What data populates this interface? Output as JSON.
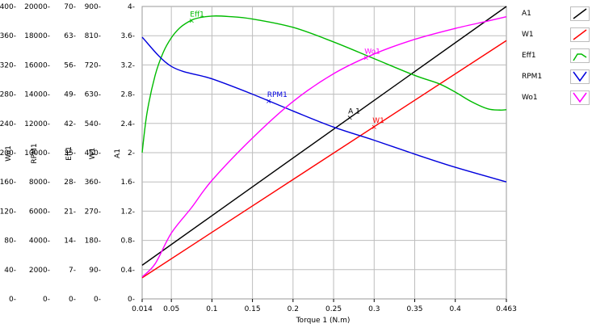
{
  "chart_data": {
    "type": "line",
    "xlabel": "Torque 1 (N.m)",
    "x_ticks": [
      "0.014",
      "0.05",
      "0.1",
      "0.15",
      "0.2",
      "0.25",
      "0.3",
      "0.35",
      "0.4",
      "0.463"
    ],
    "xlim": [
      0.014,
      0.463
    ],
    "grid": true,
    "legend_position": "right",
    "y_axes": [
      {
        "label": "Wo1",
        "min": 0,
        "max": 400,
        "ticks": [
          "400",
          "360",
          "320",
          "280",
          "240",
          "200",
          "160",
          "120",
          "80",
          "40",
          "0"
        ]
      },
      {
        "label": "RPM1",
        "min": 0,
        "max": 20000,
        "ticks": [
          "20000",
          "18000",
          "16000",
          "14000",
          "12000",
          "10000",
          "8000",
          "6000",
          "4000",
          "2000",
          "0"
        ]
      },
      {
        "label": "Eff1",
        "min": 0,
        "max": 70,
        "ticks": [
          "70",
          "63",
          "56",
          "49",
          "42",
          "35",
          "28",
          "21",
          "14",
          "7",
          "0"
        ]
      },
      {
        "label": "W1",
        "min": 0,
        "max": 900,
        "ticks": [
          "900",
          "810",
          "720",
          "630",
          "540",
          "450",
          "360",
          "270",
          "180",
          "90",
          "0"
        ]
      },
      {
        "label": "A1",
        "min": 0,
        "max": 4,
        "ticks": [
          "4",
          "3.6",
          "3.2",
          "2.8",
          "2.4",
          "2",
          "1.6",
          "1.2",
          "0.8",
          "0.4",
          "0"
        ]
      }
    ],
    "series": [
      {
        "name": "A1",
        "color": "#000000",
        "axis": 4,
        "marker_label": "A 1",
        "marker_x": 0.27,
        "x": [
          0.014,
          0.463
        ],
        "y": [
          0.46,
          4.0
        ]
      },
      {
        "name": "W1",
        "color": "#ff0000",
        "axis": 3,
        "marker_label": "W1",
        "marker_x": 0.3,
        "x": [
          0.014,
          0.463
        ],
        "y": [
          65,
          795
        ]
      },
      {
        "name": "Eff1",
        "color": "#00bb00",
        "axis": 2,
        "marker_label": "Eff1",
        "marker_x": 0.075,
        "x": [
          0.014,
          0.02,
          0.03,
          0.04,
          0.05,
          0.06,
          0.07,
          0.08,
          0.1,
          0.12,
          0.15,
          0.2,
          0.25,
          0.3,
          0.35,
          0.38,
          0.4,
          0.42,
          0.44,
          0.455,
          0.463
        ],
        "y": [
          35,
          44.5,
          53.5,
          59,
          62.5,
          64.8,
          66.2,
          67.1,
          67.7,
          67.6,
          67,
          65,
          61.5,
          57.5,
          53.5,
          51.5,
          49.5,
          47.2,
          45.5,
          45.2,
          45.3
        ]
      },
      {
        "name": "RPM1",
        "color": "#0000dd",
        "axis": 1,
        "marker_label": "RPM1",
        "marker_x": 0.17,
        "x": [
          0.014,
          0.05,
          0.1,
          0.15,
          0.2,
          0.25,
          0.3,
          0.35,
          0.4,
          0.463
        ],
        "y": [
          17900,
          15900,
          15050,
          14000,
          12850,
          11750,
          10850,
          9900,
          9000,
          8000
        ]
      },
      {
        "name": "Wo1",
        "color": "#ff00ff",
        "axis": 0,
        "marker_label": "Wo1",
        "marker_x": 0.29,
        "x": [
          0.014,
          0.03,
          0.05,
          0.075,
          0.1,
          0.15,
          0.2,
          0.25,
          0.3,
          0.35,
          0.4,
          0.44,
          0.463
        ],
        "y": [
          30,
          48,
          90,
          125,
          162,
          220,
          270,
          308,
          335,
          355,
          370,
          380,
          386
        ]
      }
    ]
  },
  "legend": [
    {
      "label": "A1",
      "color": "#000000"
    },
    {
      "label": "W1",
      "color": "#ff0000"
    },
    {
      "label": "Eff1",
      "color": "#00bb00"
    },
    {
      "label": "RPM1",
      "color": "#0000dd"
    },
    {
      "label": "Wo1",
      "color": "#ff00ff"
    }
  ]
}
